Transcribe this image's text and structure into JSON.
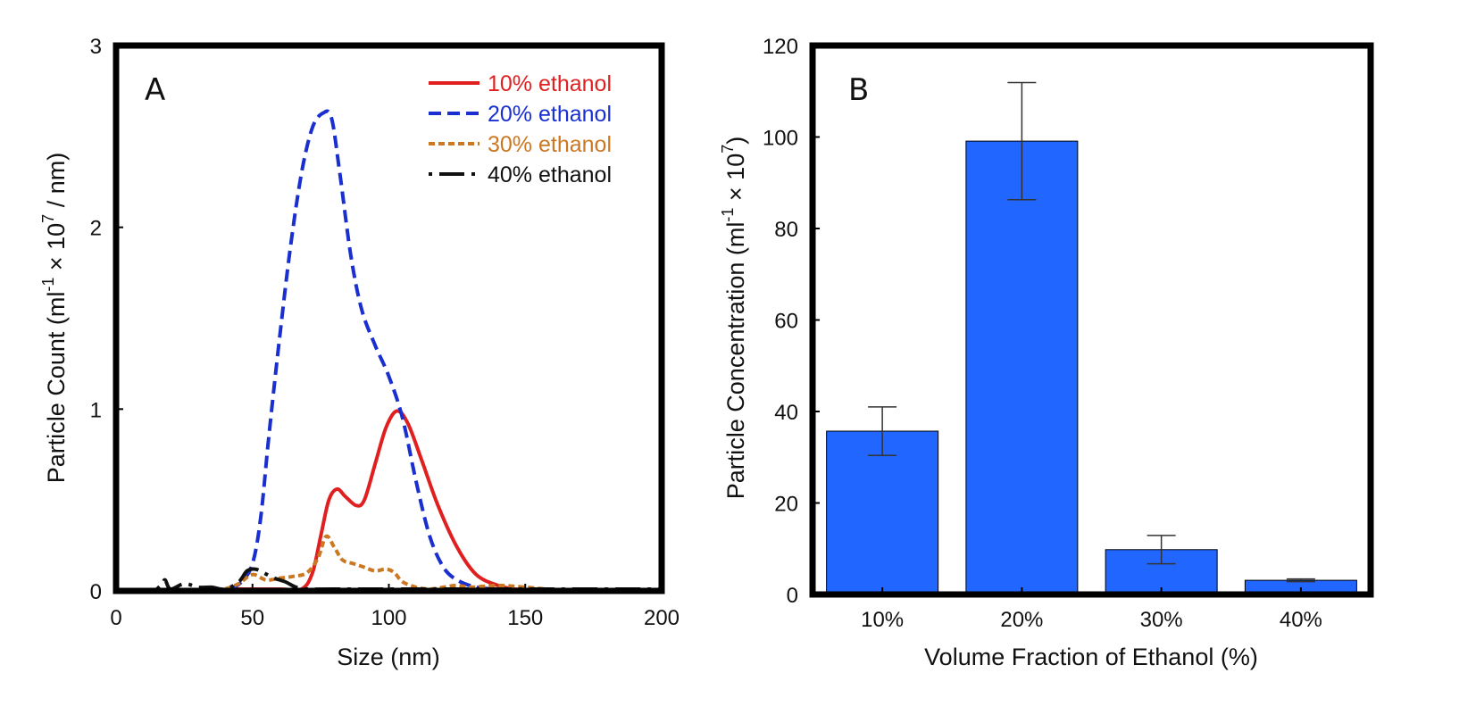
{
  "chart_data": [
    {
      "type": "line",
      "panel_label": "A",
      "xlabel": "Size (nm)",
      "ylabel": "Particle Count (ml",
      "ylabel_sup1": "-1",
      "ylabel_mid": " × 10",
      "ylabel_sup2": "7",
      "ylabel_end": " / nm)",
      "xlim": [
        0,
        200
      ],
      "ylim": [
        0,
        3
      ],
      "xticks": [
        0,
        50,
        100,
        150,
        200
      ],
      "yticks": [
        0,
        1,
        2,
        3
      ],
      "grid": false,
      "legend_position": "top-right",
      "series": [
        {
          "name": "10% ethanol",
          "color": "#e02020",
          "dash": "solid",
          "x": [
            40,
            60,
            68,
            72,
            75,
            78,
            81,
            84,
            88,
            91,
            95,
            99,
            103,
            107,
            112,
            118,
            125,
            132,
            140,
            146,
            150
          ],
          "y": [
            0,
            0,
            0.01,
            0.1,
            0.3,
            0.5,
            0.56,
            0.52,
            0.47,
            0.5,
            0.7,
            0.9,
            0.99,
            0.92,
            0.72,
            0.47,
            0.24,
            0.09,
            0.03,
            0.01,
            0
          ]
        },
        {
          "name": "20% ethanol",
          "color": "#1a2fd0",
          "dash": "dashed",
          "x": [
            42,
            46,
            50,
            53,
            56,
            60,
            64,
            68,
            72,
            76,
            79,
            82,
            86,
            90,
            95,
            100,
            105,
            110,
            115,
            120,
            125,
            132,
            140,
            145
          ],
          "y": [
            0,
            0.05,
            0.15,
            0.4,
            0.85,
            1.4,
            1.9,
            2.3,
            2.55,
            2.63,
            2.6,
            2.3,
            1.85,
            1.55,
            1.35,
            1.18,
            0.95,
            0.6,
            0.3,
            0.13,
            0.06,
            0.02,
            0,
            0
          ]
        },
        {
          "name": "30% ethanol",
          "color": "#cc7722",
          "dash": "dotted",
          "x": [
            40,
            45,
            50,
            55,
            60,
            65,
            70,
            74,
            77,
            80,
            83,
            87,
            91,
            95,
            99,
            102,
            105,
            110,
            115,
            120,
            125,
            130,
            140,
            150,
            158
          ],
          "y": [
            0,
            0.04,
            0.09,
            0.06,
            0.07,
            0.08,
            0.1,
            0.18,
            0.3,
            0.24,
            0.17,
            0.15,
            0.13,
            0.11,
            0.12,
            0.1,
            0.05,
            0.02,
            0.01,
            0.02,
            0.03,
            0.02,
            0.03,
            0.02,
            0
          ]
        },
        {
          "name": "40% ethanol",
          "color": "#111111",
          "dash": "dashdot",
          "x": [
            15,
            17,
            18,
            20,
            25,
            30,
            35,
            40,
            45,
            48,
            51,
            54,
            58,
            62,
            66,
            70,
            80,
            100,
            120,
            150,
            200
          ],
          "y": [
            0,
            0.04,
            0.06,
            0.01,
            0.04,
            0.02,
            0.02,
            0.01,
            0.05,
            0.11,
            0.12,
            0.1,
            0.07,
            0.05,
            0.02,
            0.01,
            0,
            0,
            0,
            0,
            0
          ]
        }
      ]
    },
    {
      "type": "bar",
      "panel_label": "B",
      "xlabel": "Volume Fraction of Ethanol (%)",
      "ylabel": "Particle Concentration (ml",
      "ylabel_sup1": "-1",
      "ylabel_mid": " × 10",
      "ylabel_sup2": "7",
      "ylabel_end": ")",
      "ylim": [
        0,
        120
      ],
      "yticks": [
        0,
        20,
        40,
        60,
        80,
        100,
        120
      ],
      "grid": false,
      "bar_color": "#2166ff",
      "categories": [
        "10%",
        "20%",
        "30%",
        "40%"
      ],
      "values": [
        35.7,
        99.1,
        9.8,
        3.1
      ],
      "errors": [
        5.3,
        12.8,
        3.1,
        0.3
      ]
    }
  ]
}
